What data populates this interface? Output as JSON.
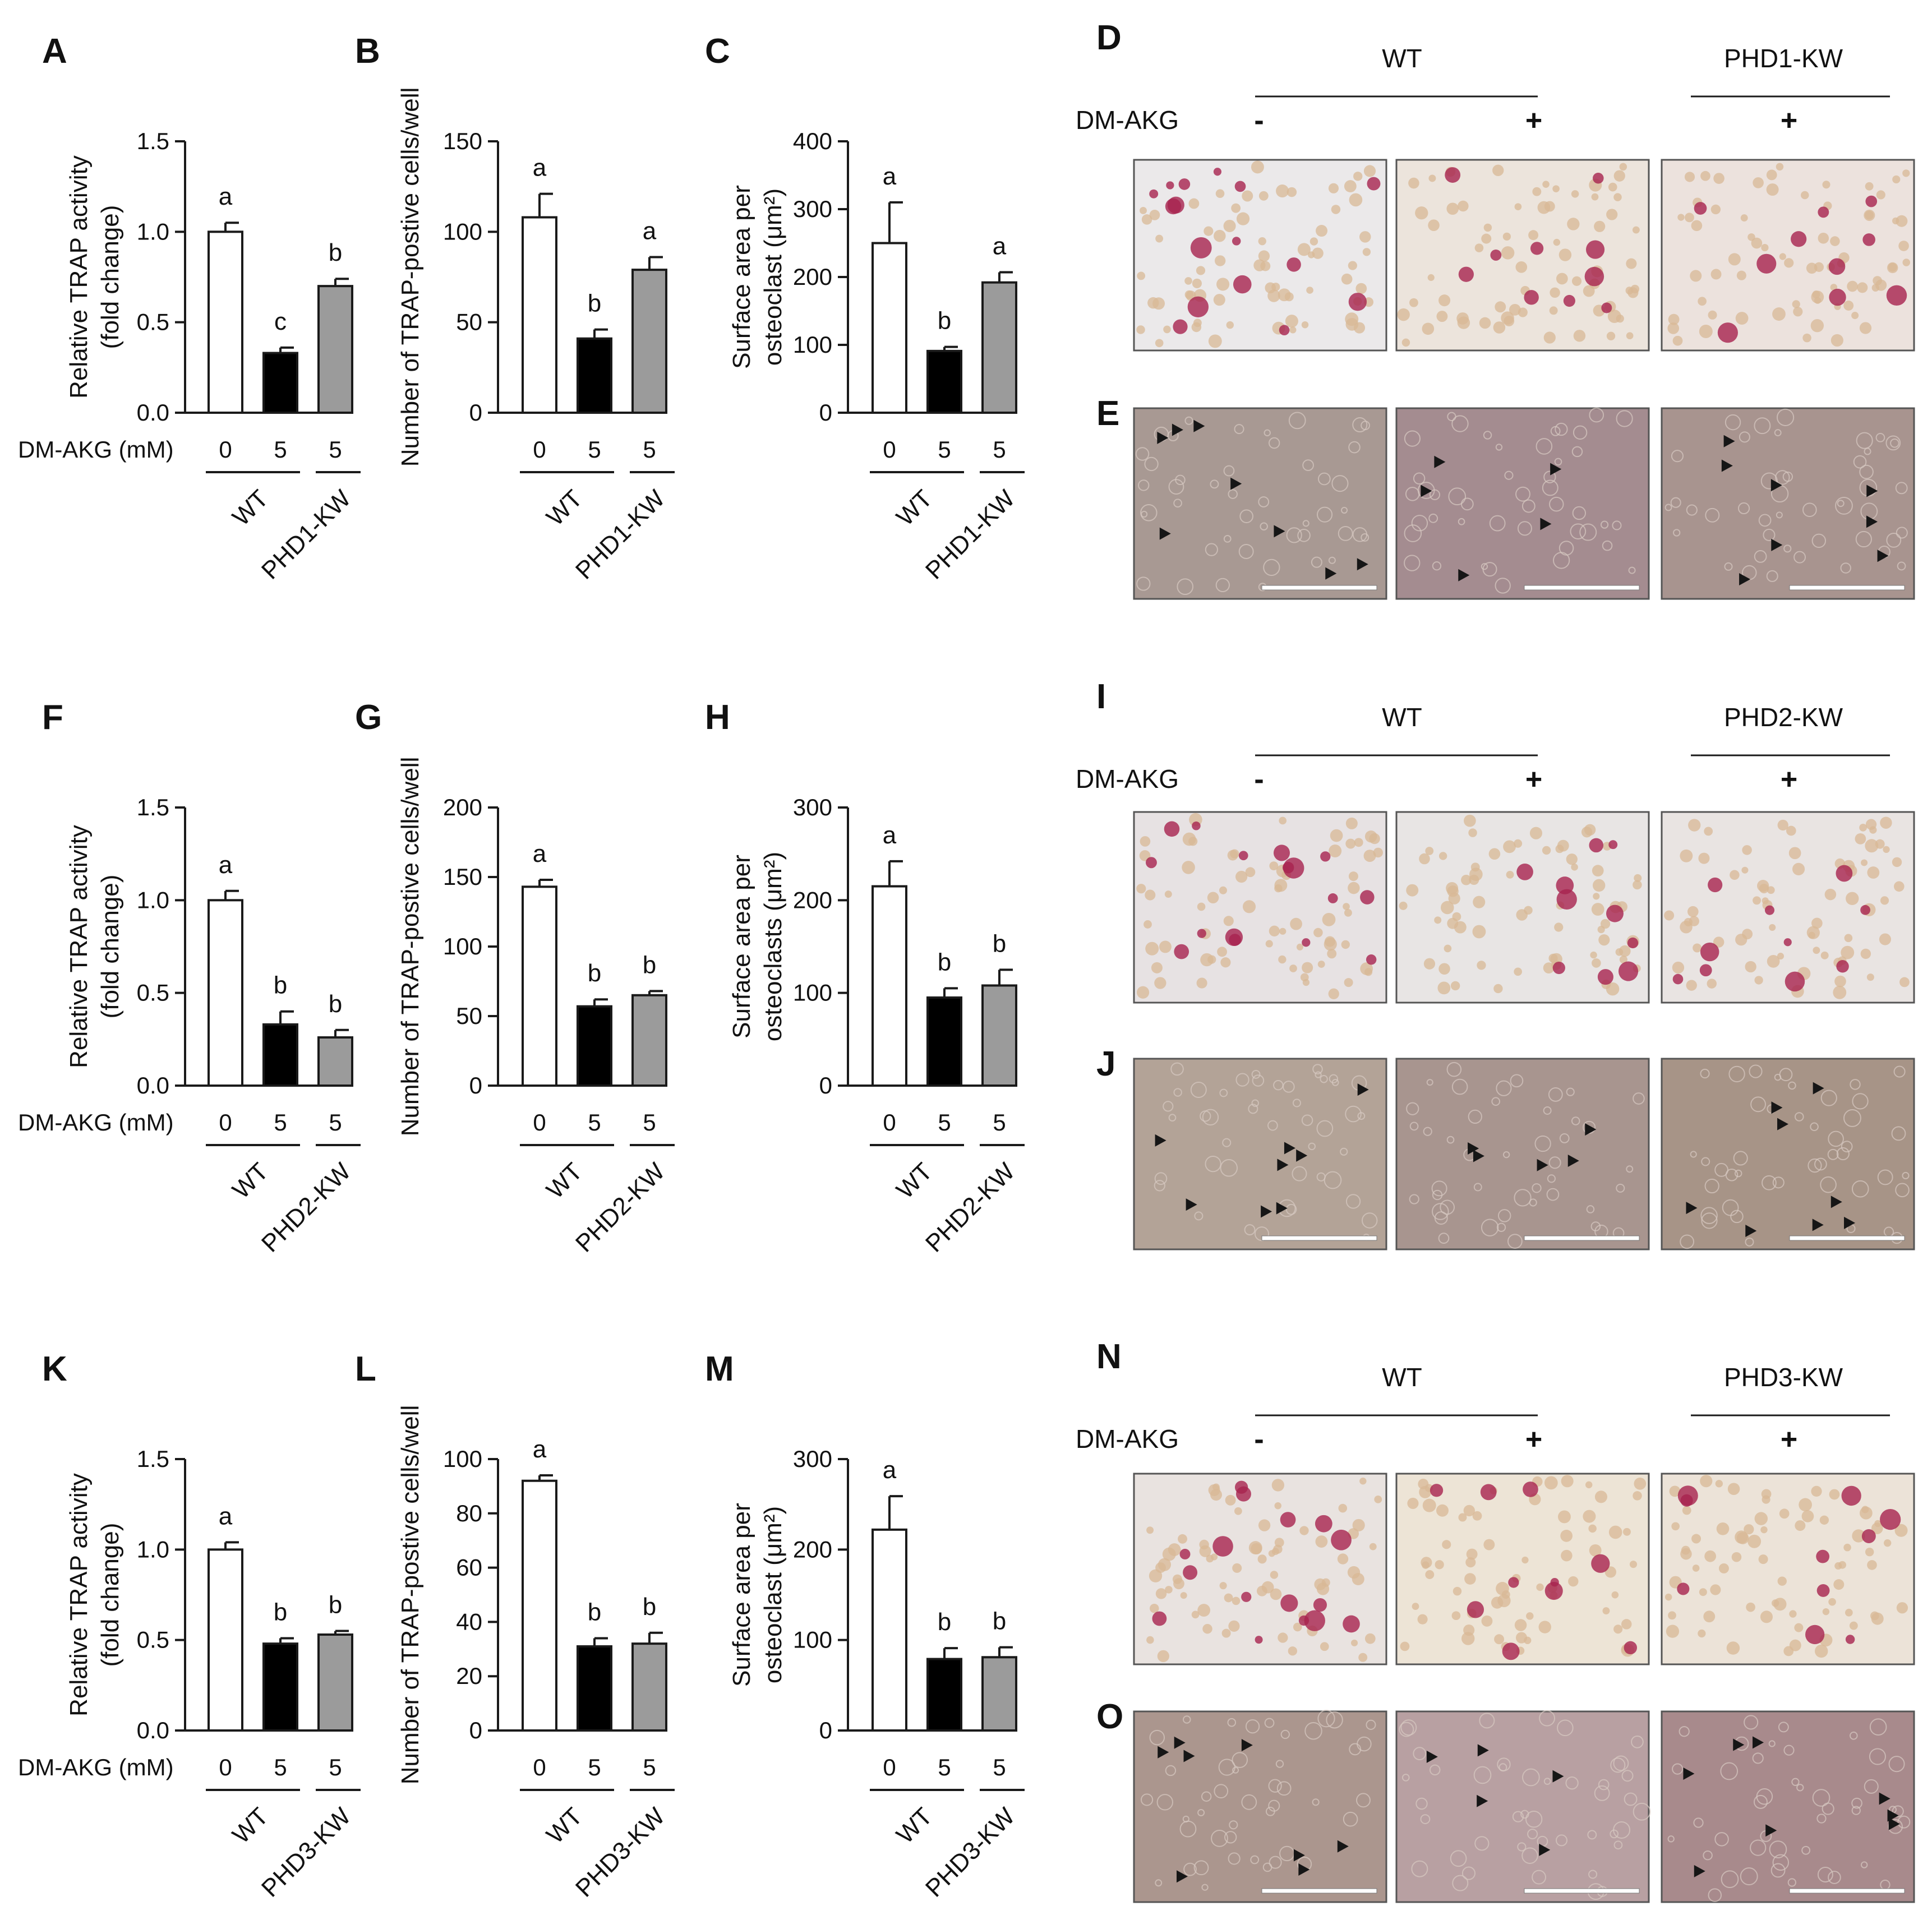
{
  "figure": {
    "colors": {
      "axis": "#1a1a1a",
      "wt_control": "#ffffff",
      "wt_treated": "#000000",
      "kw_treated": "#9b9b9b",
      "trap_stain_background": "#ede8de",
      "trap_stain_cells": "#a8234f",
      "brightfield_background": "#a89388",
      "arrowhead": "#161616"
    },
    "treatment_label": "DM-AKG (mM)",
    "dose_labels": [
      "0",
      "5",
      "5"
    ],
    "wt_label": "WT",
    "image_panels": [
      {
        "letter": "D",
        "wt": "WT",
        "kw": "PHD1-KW",
        "treatment": "DM-AKG",
        "signs": [
          "-",
          "+",
          "+"
        ],
        "stain_tints": [
          "#ebe9ea",
          "#ece4dc",
          "#ece2dd"
        ],
        "brightfield_tints": [
          "#a89993",
          "#a48c90",
          "#a8948f"
        ]
      },
      {
        "letter": "E"
      },
      {
        "letter": "I",
        "wt": "WT",
        "kw": "PHD2-KW",
        "treatment": "DM-AKG",
        "signs": [
          "-",
          "+",
          "+"
        ],
        "stain_tints": [
          "#e7e2e3",
          "#e8e5e4",
          "#e9e4e2"
        ],
        "brightfield_tints": [
          "#b3a397",
          "#a8958f",
          "#a79487"
        ]
      },
      {
        "letter": "J"
      },
      {
        "letter": "N",
        "wt": "WT",
        "kw": "PHD3-KW",
        "treatment": "DM-AKG",
        "signs": [
          "-",
          "+",
          "+"
        ],
        "stain_tints": [
          "#e9e3e0",
          "#ede4d6",
          "#ece3d8"
        ],
        "brightfield_tints": [
          "#ab968e",
          "#b8a0a2",
          "#a88a8c"
        ]
      },
      {
        "letter": "O"
      }
    ]
  },
  "chart_data": [
    {
      "panel": "A",
      "type": "bar",
      "categories": [
        "WT 0",
        "WT 5",
        "PHD1-KW 5"
      ],
      "values": [
        1.0,
        0.33,
        0.7
      ],
      "errors": [
        0.05,
        0.03,
        0.04
      ],
      "sig_labels": [
        "a",
        "c",
        "b"
      ],
      "ylabel": [
        "Relative TRAP activity",
        "(fold change)"
      ],
      "ylim": [
        0,
        1.5
      ],
      "yticks": [
        "0.0",
        "0.5",
        "1.0",
        "1.5"
      ],
      "groups": [
        "WT",
        "PHD1-KW"
      ],
      "show_treatment_label": true
    },
    {
      "panel": "B",
      "type": "bar",
      "categories": [
        "WT 0",
        "WT 5",
        "PHD1-KW 5"
      ],
      "values": [
        108,
        41,
        79
      ],
      "errors": [
        13,
        5,
        7
      ],
      "sig_labels": [
        "a",
        "b",
        "a"
      ],
      "ylabel": [
        "Number of TRAP-postive cells/well"
      ],
      "ylim": [
        0,
        150
      ],
      "yticks": [
        "0",
        "50",
        "100",
        "150"
      ],
      "groups": [
        "WT",
        "PHD1-KW"
      ],
      "show_treatment_label": false
    },
    {
      "panel": "C",
      "type": "bar",
      "categories": [
        "WT 0",
        "WT 5",
        "PHD1-KW 5"
      ],
      "values": [
        250,
        91,
        192
      ],
      "errors": [
        60,
        6,
        15
      ],
      "sig_labels": [
        "a",
        "b",
        "a"
      ],
      "ylabel": [
        "Surface area per",
        "osteoclast (μm²)"
      ],
      "ylim": [
        0,
        400
      ],
      "yticks": [
        "0",
        "100",
        "200",
        "300",
        "400"
      ],
      "groups": [
        "WT",
        "PHD1-KW"
      ],
      "show_treatment_label": false
    },
    {
      "panel": "F",
      "type": "bar",
      "categories": [
        "WT 0",
        "WT 5",
        "PHD2-KW 5"
      ],
      "values": [
        1.0,
        0.33,
        0.26
      ],
      "errors": [
        0.05,
        0.07,
        0.04
      ],
      "sig_labels": [
        "a",
        "b",
        "b"
      ],
      "ylabel": [
        "Relative TRAP activity",
        "(fold change)"
      ],
      "ylim": [
        0,
        1.5
      ],
      "yticks": [
        "0.0",
        "0.5",
        "1.0",
        "1.5"
      ],
      "groups": [
        "WT",
        "PHD2-KW"
      ],
      "show_treatment_label": true
    },
    {
      "panel": "G",
      "type": "bar",
      "categories": [
        "WT 0",
        "WT 5",
        "PHD2-KW 5"
      ],
      "values": [
        143,
        57,
        65
      ],
      "errors": [
        5,
        5,
        3
      ],
      "sig_labels": [
        "a",
        "b",
        "b"
      ],
      "ylabel": [
        "Number of TRAP-postive cells/well"
      ],
      "ylim": [
        0,
        200
      ],
      "yticks": [
        "0",
        "50",
        "100",
        "150",
        "200"
      ],
      "groups": [
        "WT",
        "PHD2-KW"
      ],
      "show_treatment_label": false
    },
    {
      "panel": "H",
      "type": "bar",
      "categories": [
        "WT 0",
        "WT 5",
        "PHD2-KW 5"
      ],
      "values": [
        215,
        95,
        108
      ],
      "errors": [
        27,
        10,
        17
      ],
      "sig_labels": [
        "a",
        "b",
        "b"
      ],
      "ylabel": [
        "Surface area per",
        "osteoclasts (μm²)"
      ],
      "ylim": [
        0,
        300
      ],
      "yticks": [
        "0",
        "100",
        "200",
        "300"
      ],
      "groups": [
        "WT",
        "PHD2-KW"
      ],
      "show_treatment_label": false
    },
    {
      "panel": "K",
      "type": "bar",
      "categories": [
        "WT 0",
        "WT 5",
        "PHD3-KW 5"
      ],
      "values": [
        1.0,
        0.48,
        0.53
      ],
      "errors": [
        0.04,
        0.03,
        0.02
      ],
      "sig_labels": [
        "a",
        "b",
        "b"
      ],
      "ylabel": [
        "Relative TRAP activity",
        "(fold change)"
      ],
      "ylim": [
        0,
        1.5
      ],
      "yticks": [
        "0.0",
        "0.5",
        "1.0",
        "1.5"
      ],
      "groups": [
        "WT",
        "PHD3-KW"
      ],
      "show_treatment_label": true
    },
    {
      "panel": "L",
      "type": "bar",
      "categories": [
        "WT 0",
        "WT 5",
        "PHD3-KW 5"
      ],
      "values": [
        92,
        31,
        32
      ],
      "errors": [
        2,
        3,
        4
      ],
      "sig_labels": [
        "a",
        "b",
        "b"
      ],
      "ylabel": [
        "Number of TRAP-postive cells/well"
      ],
      "ylim": [
        0,
        100
      ],
      "yticks": [
        "0",
        "20",
        "40",
        "60",
        "80",
        "100"
      ],
      "groups": [
        "WT",
        "PHD3-KW"
      ],
      "show_treatment_label": false
    },
    {
      "panel": "M",
      "type": "bar",
      "categories": [
        "WT 0",
        "WT 5",
        "PHD3-KW 5"
      ],
      "values": [
        222,
        79,
        81
      ],
      "errors": [
        37,
        12,
        11
      ],
      "sig_labels": [
        "a",
        "b",
        "b"
      ],
      "ylabel": [
        "Surface area per",
        "osteoclast (μm²)"
      ],
      "ylim": [
        0,
        300
      ],
      "yticks": [
        "0",
        "100",
        "200",
        "300"
      ],
      "groups": [
        "WT",
        "PHD3-KW"
      ],
      "show_treatment_label": false
    }
  ]
}
